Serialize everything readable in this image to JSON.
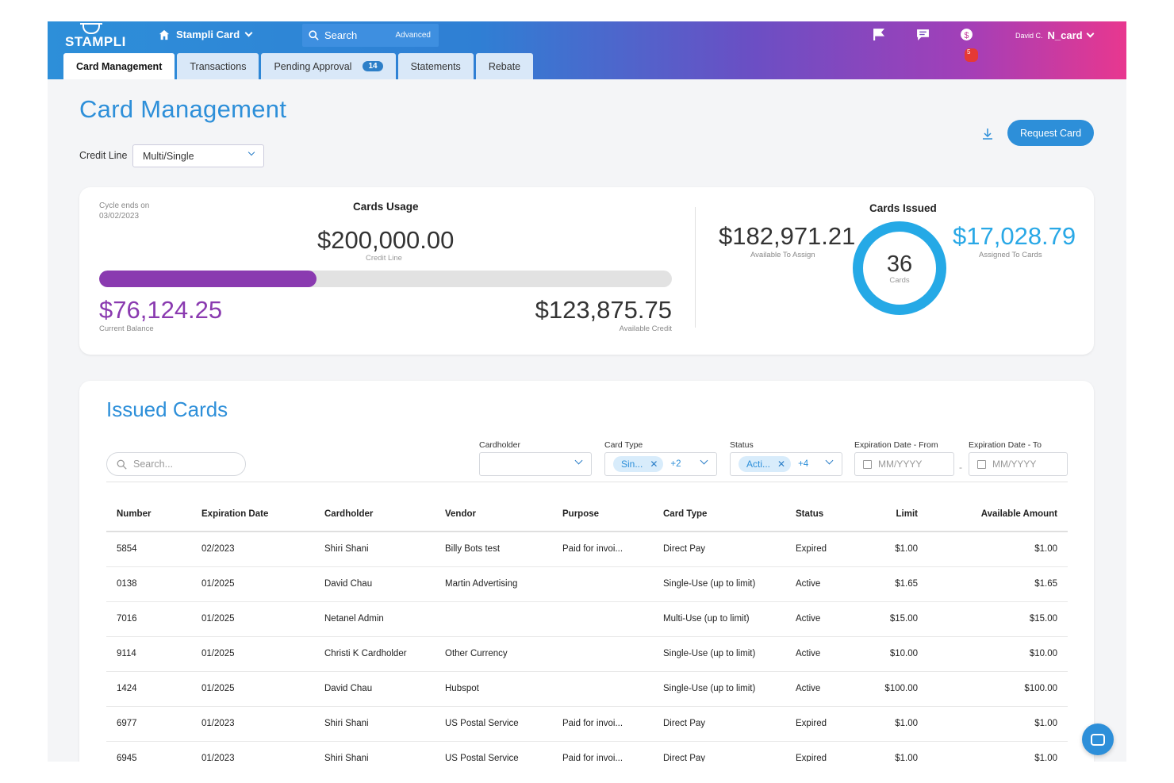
{
  "header": {
    "logo": "STAMPLI",
    "home_label": "Stampli Card",
    "search_label": "Search",
    "advanced_label": "Advanced",
    "notif_count": "5",
    "user_name": "David C.",
    "user_card": "N_card"
  },
  "tabs": [
    {
      "label": "Card Management",
      "active": true
    },
    {
      "label": "Transactions"
    },
    {
      "label": "Pending Approval",
      "count": "14"
    },
    {
      "label": "Statements"
    },
    {
      "label": "Rebate"
    }
  ],
  "page": {
    "title": "Card Management",
    "credit_line_label": "Credit Line",
    "credit_line_value": "Multi/Single",
    "request_card": "Request Card"
  },
  "summary": {
    "cycle_label": "Cycle ends on",
    "cycle_date": "03/02/2023",
    "usage_title": "Cards Usage",
    "credit_line_amount": "$200,000.00",
    "credit_line_sub": "Credit Line",
    "usage_fraction": 0.38,
    "current_balance": "$76,124.25",
    "current_balance_sub": "Current Balance",
    "available_credit": "$123,875.75",
    "available_credit_sub": "Available Credit",
    "issued_title": "Cards Issued",
    "available_to_assign": "$182,971.21",
    "available_to_assign_sub": "Available To Assign",
    "cards_count": "36",
    "cards_label": "Cards",
    "assigned_to_cards": "$17,028.79",
    "assigned_to_cards_sub": "Assigned To Cards"
  },
  "issued": {
    "title": "Issued Cards",
    "search_placeholder": "Search...",
    "filters": {
      "cardholder_label": "Cardholder",
      "card_type_label": "Card Type",
      "card_type_chip": "Sin...",
      "card_type_more": "+2",
      "status_label": "Status",
      "status_chip": "Acti...",
      "status_more": "+4",
      "exp_from_label": "Expiration Date - From",
      "exp_from_placeholder": "MM/YYYY",
      "exp_to_label": "Expiration Date - To",
      "exp_to_placeholder": "MM/YYYY"
    },
    "columns": [
      "Number",
      "Expiration Date",
      "Cardholder",
      "Vendor",
      "Purpose",
      "Card Type",
      "Status",
      "Limit",
      "Available Amount"
    ],
    "rows": [
      [
        "5854",
        "02/2023",
        "Shiri Shani",
        "Billy Bots test",
        "Paid for invoi...",
        "Direct Pay",
        "Expired",
        "$1.00",
        "$1.00"
      ],
      [
        "0138",
        "01/2025",
        "David Chau",
        "Martin Advertising",
        "",
        "Single-Use (up to limit)",
        "Active",
        "$1.65",
        "$1.65"
      ],
      [
        "7016",
        "01/2025",
        "Netanel Admin",
        "",
        "",
        "Multi-Use (up to limit)",
        "Active",
        "$15.00",
        "$15.00"
      ],
      [
        "9114",
        "01/2025",
        "Christi K Cardholder",
        "Other Currency",
        "",
        "Single-Use (up to limit)",
        "Active",
        "$10.00",
        "$10.00"
      ],
      [
        "1424",
        "01/2025",
        "David Chau",
        "Hubspot",
        "",
        "Single-Use (up to limit)",
        "Active",
        "$100.00",
        "$100.00"
      ],
      [
        "6977",
        "01/2023",
        "Shiri Shani",
        "US Postal Service",
        "Paid for invoi...",
        "Direct Pay",
        "Expired",
        "$1.00",
        "$1.00"
      ],
      [
        "6945",
        "01/2023",
        "Shiri Shani",
        "US Postal Service",
        "Paid for invoi...",
        "Direct Pay",
        "Expired",
        "$1.00",
        "$1.00"
      ]
    ]
  },
  "colors": {
    "accent": "#2d8fd9",
    "balance": "#8a3ab0",
    "assigned": "#29a8e6"
  }
}
